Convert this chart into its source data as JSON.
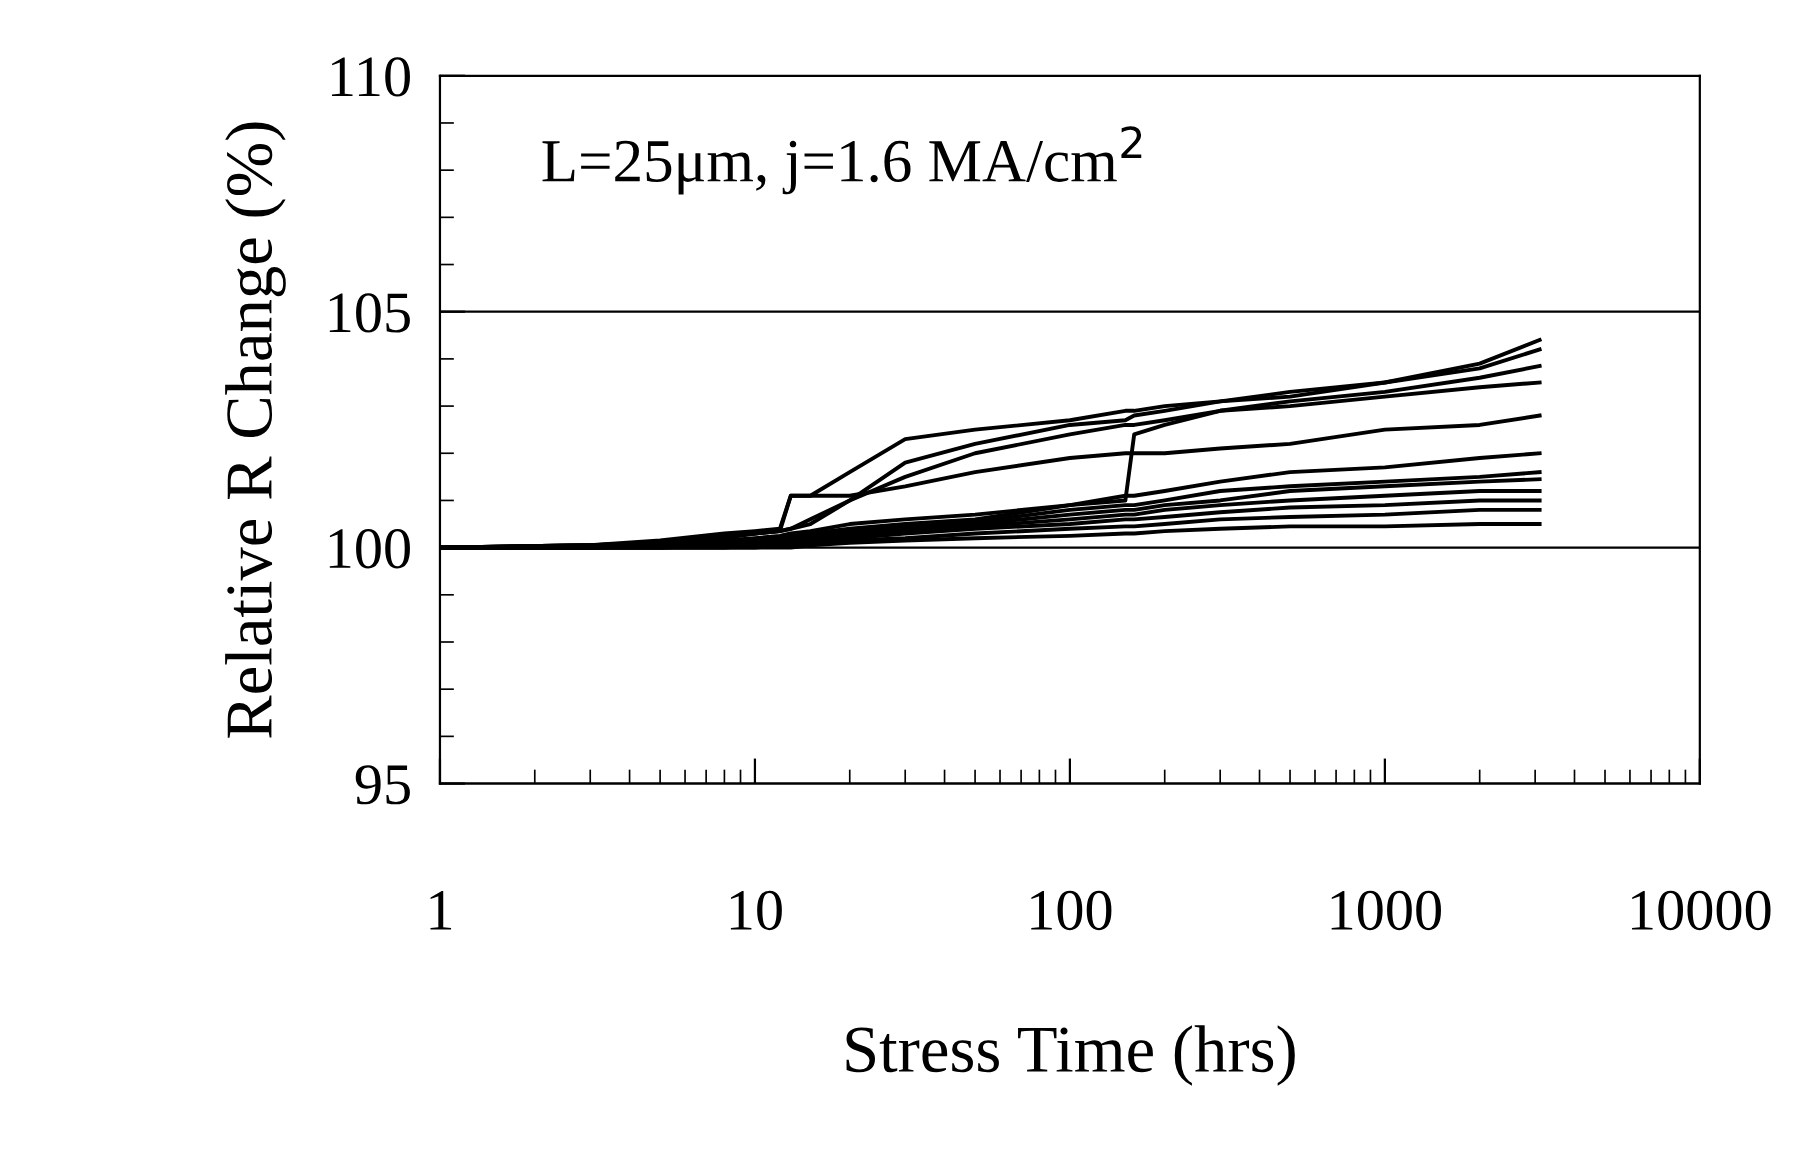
{
  "chart_data": {
    "type": "line",
    "xlabel": "Stress Time (hrs)",
    "ylabel": "Relative R Change (%)",
    "annotations": [
      "L=25μm, j=1.6 MA/cm$^{2}$"
    ],
    "log": "x",
    "xlim": [
      1,
      10000
    ],
    "xticks": [
      1,
      10,
      100,
      1000,
      10000
    ],
    "ylim": [
      95,
      110
    ],
    "yticks": [
      95,
      100,
      105,
      110
    ],
    "grid": "y",
    "legend": false,
    "marker": "none",
    "line_style": "solid",
    "x": [
      1,
      3,
      5,
      8,
      10,
      12,
      13,
      15,
      20,
      30,
      50,
      100,
      150,
      160,
      200,
      300,
      500,
      1000,
      2000,
      3100
    ],
    "series": [
      {
        "color": "#000000",
        "values": [
          100,
          100.05,
          100.15,
          100.3,
          100.35,
          100.4,
          101.1,
          101.1,
          101.6,
          102.3,
          102.5,
          102.7,
          102.9,
          102.9,
          103.0,
          103.1,
          103.3,
          103.5,
          103.9,
          104.4
        ]
      },
      {
        "color": "#000000",
        "values": [
          100,
          100.05,
          100.1,
          100.25,
          100.3,
          100.35,
          100.4,
          100.5,
          101.0,
          101.8,
          102.2,
          102.6,
          102.7,
          102.8,
          102.9,
          103.1,
          103.2,
          103.5,
          103.8,
          104.2
        ]
      },
      {
        "color": "#000000",
        "values": [
          100,
          100,
          100.05,
          100.15,
          100.2,
          100.25,
          100.3,
          100.35,
          100.5,
          100.6,
          100.7,
          100.9,
          101.0,
          102.4,
          102.6,
          102.9,
          103.1,
          103.3,
          103.6,
          103.85
        ]
      },
      {
        "color": "#000000",
        "values": [
          100,
          100.05,
          100.1,
          100.2,
          100.3,
          100.35,
          100.4,
          100.6,
          101.0,
          101.5,
          102.0,
          102.4,
          102.6,
          102.6,
          102.7,
          102.9,
          103.0,
          103.2,
          103.4,
          103.5
        ]
      },
      {
        "color": "#000000",
        "values": [
          100,
          100.05,
          100.1,
          100.25,
          100.3,
          100.35,
          101.1,
          101.1,
          101.1,
          101.3,
          101.6,
          101.9,
          102.0,
          102.0,
          102.0,
          102.1,
          102.2,
          102.5,
          102.6,
          102.8
        ]
      },
      {
        "color": "#000000",
        "values": [
          100,
          100,
          100.05,
          100.1,
          100.15,
          100.2,
          100.25,
          100.3,
          100.4,
          100.5,
          100.6,
          100.9,
          101.1,
          101.1,
          101.2,
          101.4,
          101.6,
          101.7,
          101.9,
          102.0
        ]
      },
      {
        "color": "#000000",
        "values": [
          100,
          100,
          100.05,
          100.1,
          100.15,
          100.2,
          100.2,
          100.25,
          100.35,
          100.45,
          100.55,
          100.8,
          100.9,
          100.9,
          101.0,
          101.2,
          101.3,
          101.4,
          101.5,
          101.6
        ]
      },
      {
        "color": "#000000",
        "values": [
          100,
          100,
          100,
          100.05,
          100.1,
          100.15,
          100.15,
          100.2,
          100.3,
          100.4,
          100.5,
          100.7,
          100.8,
          100.8,
          100.9,
          101.0,
          101.2,
          101.3,
          101.4,
          101.45
        ]
      },
      {
        "color": "#000000",
        "values": [
          100,
          100,
          100,
          100.05,
          100.1,
          100.1,
          100.15,
          100.2,
          100.25,
          100.35,
          100.45,
          100.6,
          100.7,
          100.7,
          100.8,
          100.9,
          101.0,
          101.1,
          101.2,
          101.2
        ]
      },
      {
        "color": "#000000",
        "values": [
          100,
          100,
          100,
          100,
          100.05,
          100.1,
          100.1,
          100.15,
          100.2,
          100.3,
          100.4,
          100.5,
          100.6,
          100.6,
          100.65,
          100.75,
          100.85,
          100.9,
          101.0,
          101.0
        ]
      },
      {
        "color": "#000000",
        "values": [
          100,
          100,
          100,
          100,
          100,
          100.05,
          100.05,
          100.1,
          100.15,
          100.2,
          100.3,
          100.4,
          100.45,
          100.45,
          100.5,
          100.6,
          100.65,
          100.7,
          100.8,
          100.8
        ]
      },
      {
        "color": "#000000",
        "values": [
          100,
          100,
          100,
          100,
          100,
          100,
          100,
          100.05,
          100.1,
          100.15,
          100.2,
          100.25,
          100.3,
          100.3,
          100.35,
          100.4,
          100.45,
          100.45,
          100.5,
          100.5
        ]
      }
    ]
  }
}
